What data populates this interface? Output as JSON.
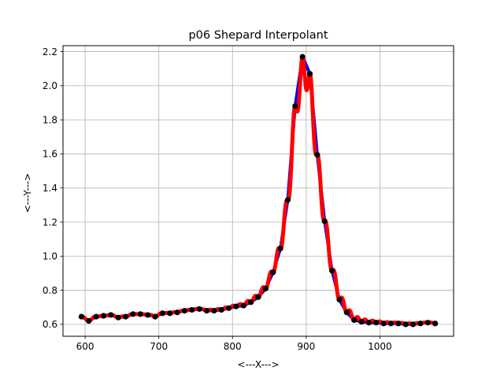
{
  "chart_data": {
    "type": "line",
    "title": "p06 Shepard Interpolant",
    "xlabel": "<---X--->",
    "ylabel": "<---Y--->",
    "xlim": [
      570,
      1100
    ],
    "ylim": [
      0.53,
      2.235
    ],
    "xticks": [
      600,
      700,
      800,
      900,
      1000
    ],
    "yticks": [
      0.6,
      0.8,
      1.0,
      1.2,
      1.4,
      1.6,
      1.8,
      2.0,
      2.2
    ],
    "grid": true,
    "colors": {
      "data_line": "#0000ff",
      "interpolant": "#ff0000",
      "points": "#000000"
    },
    "series": [
      {
        "role": "data",
        "x": [
          595,
          605,
          615,
          625,
          635,
          645,
          655,
          665,
          675,
          685,
          695,
          705,
          715,
          725,
          735,
          745,
          755,
          765,
          775,
          785,
          795,
          805,
          815,
          825,
          835,
          845,
          855,
          865,
          875,
          885,
          895,
          905,
          915,
          925,
          935,
          945,
          955,
          965,
          975,
          985,
          995,
          1005,
          1015,
          1025,
          1035,
          1045,
          1055,
          1065,
          1075
        ],
        "y": [
          0.645,
          0.62,
          0.645,
          0.65,
          0.655,
          0.64,
          0.645,
          0.66,
          0.66,
          0.655,
          0.645,
          0.665,
          0.665,
          0.67,
          0.68,
          0.685,
          0.69,
          0.68,
          0.68,
          0.685,
          0.695,
          0.705,
          0.71,
          0.73,
          0.76,
          0.81,
          0.905,
          1.045,
          1.33,
          1.88,
          2.17,
          2.07,
          1.595,
          1.205,
          0.915,
          0.745,
          0.67,
          0.625,
          0.615,
          0.61,
          0.61,
          0.605,
          0.605,
          0.605,
          0.6,
          0.6,
          0.605,
          0.61,
          0.605
        ]
      }
    ]
  }
}
